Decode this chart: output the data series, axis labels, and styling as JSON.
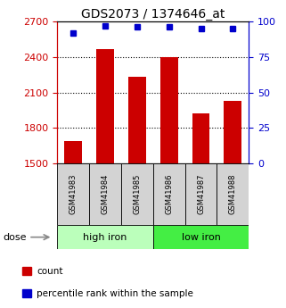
{
  "title": "GDS2073 / 1374646_at",
  "samples": [
    "GSM41983",
    "GSM41984",
    "GSM41985",
    "GSM41986",
    "GSM41987",
    "GSM41988"
  ],
  "bar_values": [
    1690,
    2470,
    2230,
    2400,
    1920,
    2030
  ],
  "percentile_values": [
    92,
    97,
    96,
    96,
    95,
    95
  ],
  "bar_color": "#cc0000",
  "dot_color": "#0000cc",
  "ylim_left": [
    1500,
    2700
  ],
  "ylim_right": [
    0,
    100
  ],
  "yticks_left": [
    1500,
    1800,
    2100,
    2400,
    2700
  ],
  "yticks_right": [
    0,
    25,
    50,
    75,
    100
  ],
  "group_ranges": [
    [
      -0.5,
      2.5,
      "high iron",
      "#bbffbb"
    ],
    [
      2.5,
      5.5,
      "low iron",
      "#44ee44"
    ]
  ],
  "dose_label": "dose",
  "legend_count_label": "count",
  "legend_pct_label": "percentile rank within the sample",
  "title_fontsize": 10,
  "tick_fontsize": 8,
  "sample_fontsize": 6,
  "group_fontsize": 8,
  "legend_fontsize": 7.5
}
